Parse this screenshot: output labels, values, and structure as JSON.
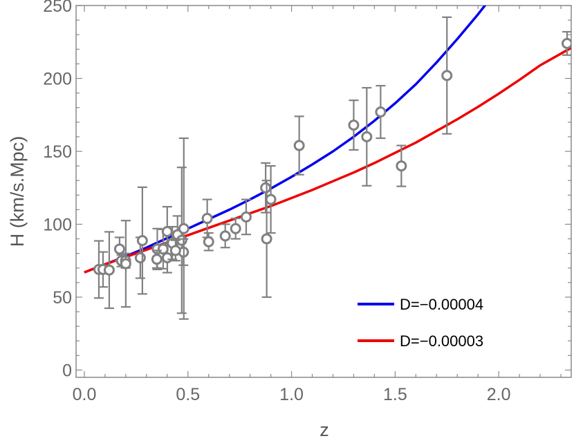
{
  "chart_data": {
    "type": "scatter",
    "title": "",
    "xlabel": "z",
    "ylabel": "H (km/s.Mpc)",
    "xlim": [
      -0.04,
      2.35
    ],
    "ylim": [
      -5,
      250
    ],
    "xticks": [
      "0.0",
      "0.5",
      "1.0",
      "1.5",
      "2.0"
    ],
    "xtick_values": [
      0,
      0.5,
      1.0,
      1.5,
      2.0
    ],
    "yticks": [
      "0",
      "50",
      "100",
      "150",
      "200",
      "250"
    ],
    "ytick_values": [
      0,
      50,
      100,
      150,
      200,
      250
    ],
    "grid": false,
    "legend_position": "bottom-right",
    "colors": {
      "points": "#808080",
      "frame": "#888888"
    },
    "points": [
      {
        "x": 0.07,
        "y": 69,
        "err": 19.6
      },
      {
        "x": 0.09,
        "y": 69,
        "err": 12
      },
      {
        "x": 0.12,
        "y": 68.6,
        "err": 26.2
      },
      {
        "x": 0.17,
        "y": 83,
        "err": 8
      },
      {
        "x": 0.179,
        "y": 75,
        "err": 4
      },
      {
        "x": 0.199,
        "y": 75,
        "err": 5
      },
      {
        "x": 0.2,
        "y": 72.9,
        "err": 29.6
      },
      {
        "x": 0.27,
        "y": 77,
        "err": 14
      },
      {
        "x": 0.28,
        "y": 88.8,
        "err": 36.6
      },
      {
        "x": 0.352,
        "y": 83,
        "err": 14
      },
      {
        "x": 0.3802,
        "y": 83,
        "err": 13.5
      },
      {
        "x": 0.4,
        "y": 95,
        "err": 17
      },
      {
        "x": 0.4004,
        "y": 77,
        "err": 10.2
      },
      {
        "x": 0.4247,
        "y": 87.1,
        "err": 11.2
      },
      {
        "x": 0.4497,
        "y": 92.8,
        "err": 12.9
      },
      {
        "x": 0.47,
        "y": 89,
        "err": 50
      },
      {
        "x": 0.4783,
        "y": 80.9,
        "err": 9
      },
      {
        "x": 0.48,
        "y": 97,
        "err": 62
      },
      {
        "x": 0.593,
        "y": 104,
        "err": 13
      },
      {
        "x": 0.68,
        "y": 92,
        "err": 8
      },
      {
        "x": 0.781,
        "y": 105,
        "err": 12
      },
      {
        "x": 0.875,
        "y": 125,
        "err": 17
      },
      {
        "x": 0.88,
        "y": 90,
        "err": 40
      },
      {
        "x": 0.9,
        "y": 117,
        "err": 23
      },
      {
        "x": 1.037,
        "y": 154,
        "err": 20
      },
      {
        "x": 1.3,
        "y": 168,
        "err": 17
      },
      {
        "x": 1.363,
        "y": 160,
        "err": 33.6
      },
      {
        "x": 1.43,
        "y": 177,
        "err": 18
      },
      {
        "x": 1.53,
        "y": 140,
        "err": 14
      },
      {
        "x": 1.75,
        "y": 202,
        "err": 40
      },
      {
        "x": 2.33,
        "y": 224,
        "err": 8
      },
      {
        "x": 0.6,
        "y": 88,
        "err": 6
      },
      {
        "x": 0.73,
        "y": 97,
        "err": 7
      },
      {
        "x": 0.44,
        "y": 82,
        "err": 7
      },
      {
        "x": 0.35,
        "y": 76,
        "err": 6
      }
    ],
    "series": [
      {
        "name": "D=−0.00004",
        "color": "#0000ee",
        "x": [
          0,
          0.1,
          0.2,
          0.3,
          0.4,
          0.5,
          0.6,
          0.7,
          0.8,
          0.9,
          1.0,
          1.1,
          1.2,
          1.3,
          1.4,
          1.5,
          1.6,
          1.7,
          1.8,
          1.9,
          2.0,
          2.03
        ],
        "y": [
          67,
          72.5,
          78,
          84,
          90.5,
          97,
          103.5,
          110,
          117,
          124.5,
          132.5,
          141,
          150,
          160,
          171,
          183,
          196,
          211,
          227,
          244,
          262,
          268
        ]
      },
      {
        "name": "D=−0.00003",
        "color": "#ee0000",
        "x": [
          0,
          0.1,
          0.2,
          0.3,
          0.4,
          0.5,
          0.6,
          0.7,
          0.8,
          0.9,
          1.0,
          1.1,
          1.2,
          1.3,
          1.4,
          1.5,
          1.6,
          1.7,
          1.8,
          1.9,
          2.0,
          2.1,
          2.2,
          2.35
        ],
        "y": [
          67,
          72.5,
          77.5,
          82.5,
          87.5,
          92.5,
          97.5,
          102.5,
          107.5,
          112.5,
          118,
          123.5,
          129.5,
          135.5,
          142,
          149,
          156,
          164,
          172,
          180.5,
          189.5,
          199,
          209,
          221
        ]
      }
    ]
  }
}
